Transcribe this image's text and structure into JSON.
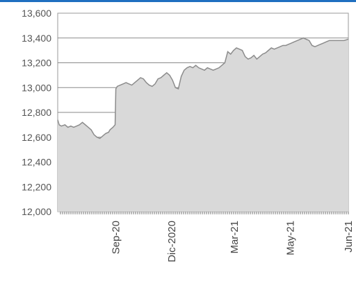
{
  "chart_data": {
    "type": "area",
    "title": "",
    "xlabel": "",
    "ylabel": "",
    "ylim": [
      12000,
      13600
    ],
    "yticks": [
      12000,
      12200,
      12400,
      12600,
      12800,
      13000,
      13200,
      13400,
      13600
    ],
    "ytick_labels": [
      "12,000",
      "12,200",
      "12,400",
      "12,600",
      "12,800",
      "13,000",
      "13,200",
      "13,400",
      "13,600"
    ],
    "grid": "horizontal",
    "xtick_labels": [
      "Sep-20",
      "Dic-2020",
      "Mar-21",
      "May-21",
      "Jun-21"
    ],
    "x_positions": [
      80,
      157,
      243,
      320,
      400
    ],
    "x_range": [
      0,
      400
    ],
    "series": [
      {
        "fill": "#d9d9d9",
        "stroke": "#8c8c8c",
        "points": [
          [
            0,
            12740
          ],
          [
            2,
            12700
          ],
          [
            5,
            12690
          ],
          [
            10,
            12700
          ],
          [
            14,
            12680
          ],
          [
            18,
            12690
          ],
          [
            22,
            12680
          ],
          [
            26,
            12690
          ],
          [
            30,
            12700
          ],
          [
            34,
            12720
          ],
          [
            38,
            12700
          ],
          [
            42,
            12680
          ],
          [
            46,
            12660
          ],
          [
            50,
            12620
          ],
          [
            54,
            12600
          ],
          [
            58,
            12590
          ],
          [
            62,
            12610
          ],
          [
            66,
            12630
          ],
          [
            70,
            12640
          ],
          [
            72,
            12660
          ],
          [
            76,
            12680
          ],
          [
            79,
            12700
          ],
          [
            80,
            12990
          ],
          [
            82,
            13010
          ],
          [
            86,
            13020
          ],
          [
            90,
            13030
          ],
          [
            94,
            13040
          ],
          [
            98,
            13030
          ],
          [
            102,
            13020
          ],
          [
            106,
            13040
          ],
          [
            110,
            13060
          ],
          [
            114,
            13080
          ],
          [
            118,
            13070
          ],
          [
            122,
            13040
          ],
          [
            126,
            13020
          ],
          [
            130,
            13010
          ],
          [
            134,
            13030
          ],
          [
            138,
            13070
          ],
          [
            142,
            13080
          ],
          [
            146,
            13100
          ],
          [
            150,
            13120
          ],
          [
            154,
            13100
          ],
          [
            158,
            13060
          ],
          [
            162,
            13000
          ],
          [
            166,
            12990
          ],
          [
            170,
            13090
          ],
          [
            174,
            13140
          ],
          [
            178,
            13160
          ],
          [
            182,
            13170
          ],
          [
            186,
            13160
          ],
          [
            190,
            13180
          ],
          [
            194,
            13160
          ],
          [
            198,
            13150
          ],
          [
            202,
            13140
          ],
          [
            206,
            13160
          ],
          [
            210,
            13150
          ],
          [
            214,
            13140
          ],
          [
            218,
            13150
          ],
          [
            222,
            13160
          ],
          [
            226,
            13180
          ],
          [
            230,
            13200
          ],
          [
            234,
            13290
          ],
          [
            238,
            13270
          ],
          [
            242,
            13300
          ],
          [
            246,
            13320
          ],
          [
            250,
            13310
          ],
          [
            254,
            13300
          ],
          [
            258,
            13250
          ],
          [
            262,
            13230
          ],
          [
            266,
            13240
          ],
          [
            270,
            13260
          ],
          [
            274,
            13230
          ],
          [
            278,
            13250
          ],
          [
            282,
            13270
          ],
          [
            286,
            13280
          ],
          [
            290,
            13300
          ],
          [
            294,
            13320
          ],
          [
            298,
            13310
          ],
          [
            302,
            13320
          ],
          [
            306,
            13330
          ],
          [
            310,
            13340
          ],
          [
            314,
            13340
          ],
          [
            318,
            13350
          ],
          [
            322,
            13360
          ],
          [
            326,
            13370
          ],
          [
            330,
            13380
          ],
          [
            334,
            13390
          ],
          [
            338,
            13400
          ],
          [
            342,
            13390
          ],
          [
            346,
            13380
          ],
          [
            350,
            13340
          ],
          [
            354,
            13330
          ],
          [
            358,
            13340
          ],
          [
            362,
            13350
          ],
          [
            366,
            13360
          ],
          [
            370,
            13370
          ],
          [
            374,
            13380
          ],
          [
            378,
            13380
          ],
          [
            382,
            13380
          ],
          [
            386,
            13380
          ],
          [
            390,
            13380
          ],
          [
            394,
            13380
          ],
          [
            400,
            13390
          ]
        ]
      }
    ]
  }
}
